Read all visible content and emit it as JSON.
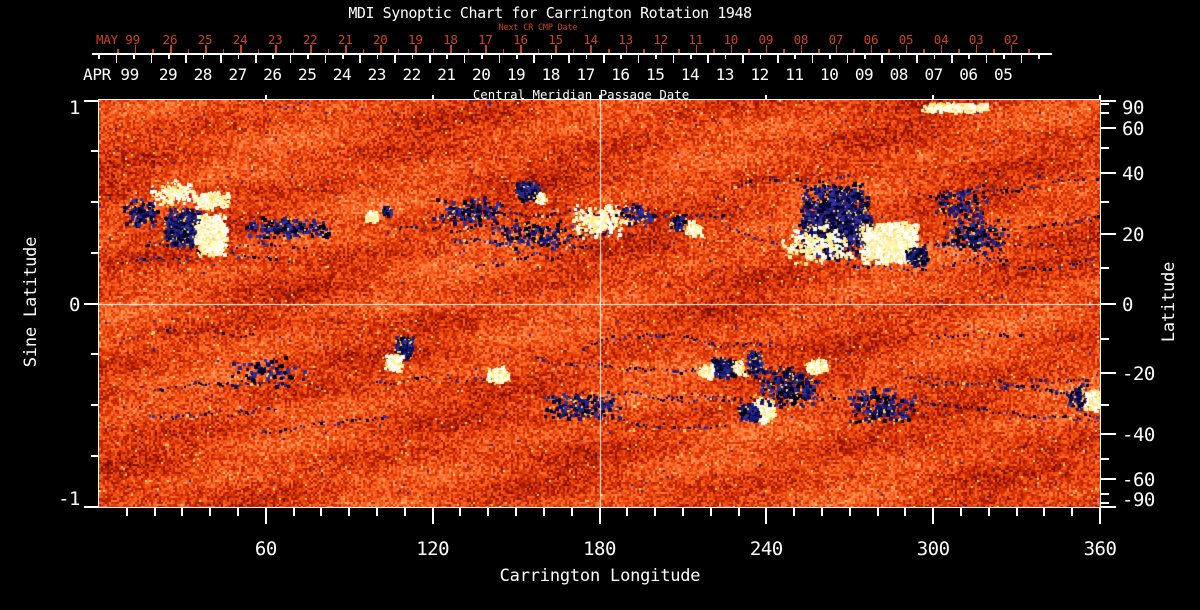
{
  "chart_data": {
    "type": "heatmap",
    "title": "MDI Synoptic Chart for Carrington Rotation 1948",
    "top_axis": {
      "name": "Next CR CMP Date",
      "month_label": "MAY 99",
      "tick_labels": [
        "26",
        "25",
        "24",
        "23",
        "22",
        "21",
        "20",
        "19",
        "18",
        "17",
        "16",
        "15",
        "14",
        "13",
        "12",
        "11",
        "10",
        "09",
        "08",
        "07",
        "06",
        "05",
        "04",
        "03",
        "02"
      ],
      "color": "#cf4318"
    },
    "cmp_axis": {
      "name": "Central Meridian Passage Date",
      "month_label": "APR 99",
      "tick_labels": [
        "29",
        "28",
        "27",
        "26",
        "25",
        "24",
        "23",
        "22",
        "21",
        "20",
        "19",
        "18",
        "17",
        "16",
        "15",
        "14",
        "13",
        "12",
        "11",
        "10",
        "09",
        "08",
        "07",
        "06",
        "05"
      ]
    },
    "x_axis": {
      "label": "Carrington Longitude",
      "range": [
        0,
        360
      ],
      "tick_labels": [
        "60",
        "120",
        "180",
        "240",
        "300",
        "360"
      ],
      "minor_step": 10
    },
    "y_left": {
      "label": "Sine Latitude",
      "range": [
        -1,
        1
      ],
      "tick_labels": [
        "1",
        "0",
        "-1"
      ],
      "minor_step": 0.25
    },
    "y_right": {
      "label": "Latitude",
      "tick_labels": [
        "90",
        "60",
        "40",
        "20",
        "0",
        "-20",
        "-40",
        "-60",
        "-90"
      ],
      "minor_step": 10
    },
    "crosshair": {
      "longitude": 180,
      "sine_latitude": 0
    },
    "colors": {
      "background": "#000000",
      "axis": "#ffffff",
      "date_axis_red": "#cf4318",
      "quiet_palette": [
        "#7e0e00",
        "#9c1600",
        "#b82100",
        "#cf2d00",
        "#e23d04",
        "#f04e10",
        "#fb5f1f",
        "#ff7030",
        "#ff8344",
        "#ff9b5c"
      ],
      "negative_palette": [
        "#000030",
        "#0b0b52",
        "#17176e",
        "#000010",
        "#252586",
        "#31319a"
      ],
      "positive_palette": [
        "#ffffff",
        "#fffef2",
        "#ffffd0",
        "#fff3ae",
        "#ffea90"
      ],
      "fringe": "#ffd24d",
      "salt_navy": "#22229a",
      "salt_yellow": "#ffd27a"
    },
    "active_regions": [
      {
        "lon": 29.9,
        "slat": 0.374,
        "rlon": 7.2,
        "rslat": 0.099,
        "pol": "neg",
        "d": 1.6
      },
      {
        "lon": 39.9,
        "slat": 0.34,
        "rlon": 6.1,
        "rslat": 0.108,
        "pol": "pos",
        "d": 1.8
      },
      {
        "lon": 39.9,
        "slat": 0.512,
        "rlon": 6.5,
        "rslat": 0.049,
        "pol": "pos",
        "d": 1.2
      },
      {
        "lon": 26.0,
        "slat": 0.55,
        "rlon": 8.0,
        "rslat": 0.07,
        "pol": "pos",
        "d": 0.3
      },
      {
        "lon": 14.7,
        "slat": 0.453,
        "rlon": 7.2,
        "rslat": 0.074,
        "pol": "neg",
        "d": 0.35
      },
      {
        "lon": 66.9,
        "slat": 0.374,
        "rlon": 16.2,
        "rslat": 0.059,
        "pol": "neg",
        "d": 0.3
      },
      {
        "lon": 97.5,
        "slat": 0.438,
        "rlon": 2.2,
        "rslat": 0.03,
        "pol": "pos",
        "d": 1.2
      },
      {
        "lon": 103.2,
        "slat": 0.458,
        "rlon": 2.2,
        "rslat": 0.03,
        "pol": "neg",
        "d": 1.2
      },
      {
        "lon": 133.4,
        "slat": 0.463,
        "rlon": 14.4,
        "rslat": 0.074,
        "pol": "neg",
        "d": 0.22
      },
      {
        "lon": 153.9,
        "slat": 0.562,
        "rlon": 5.0,
        "rslat": 0.049,
        "pol": "neg",
        "d": 1.5
      },
      {
        "lon": 158.6,
        "slat": 0.527,
        "rlon": 2.2,
        "rslat": 0.03,
        "pol": "pos",
        "d": 1.3
      },
      {
        "lon": 155.0,
        "slat": 0.35,
        "rlon": 18.0,
        "rslat": 0.08,
        "pol": "neg",
        "d": 0.15
      },
      {
        "lon": 180.2,
        "slat": 0.414,
        "rlon": 10.8,
        "rslat": 0.089,
        "pol": "pos",
        "d": 0.35
      },
      {
        "lon": 193.0,
        "slat": 0.44,
        "rlon": 8.0,
        "rslat": 0.06,
        "pol": "neg",
        "d": 0.25
      },
      {
        "lon": 207.9,
        "slat": 0.404,
        "rlon": 2.9,
        "rslat": 0.039,
        "pol": "neg",
        "d": 1.5
      },
      {
        "lon": 213.3,
        "slat": 0.374,
        "rlon": 2.9,
        "rslat": 0.039,
        "pol": "pos",
        "d": 1.5
      },
      {
        "lon": 264.7,
        "slat": 0.414,
        "rlon": 13.7,
        "rslat": 0.197,
        "pol": "neg",
        "d": 1.0
      },
      {
        "lon": 258.0,
        "slat": 0.3,
        "rlon": 14.0,
        "rslat": 0.1,
        "pol": "pos",
        "d": 0.25
      },
      {
        "lon": 283.8,
        "slat": 0.305,
        "rlon": 10.8,
        "rslat": 0.108,
        "pol": "pos",
        "d": 1.8
      },
      {
        "lon": 293.5,
        "slat": 0.241,
        "rlon": 4.3,
        "rslat": 0.049,
        "pol": "neg",
        "d": 1.5
      },
      {
        "lon": 307.9,
        "slat": 0.97,
        "rlon": 12.6,
        "rslat": 0.025,
        "pol": "pos",
        "d": 1.2
      },
      {
        "lon": 315.1,
        "slat": 0.34,
        "rlon": 12.6,
        "rslat": 0.089,
        "pol": "neg",
        "d": 0.28
      },
      {
        "lon": 310.0,
        "slat": 0.48,
        "rlon": 10.0,
        "rslat": 0.1,
        "pol": "neg",
        "d": 0.18
      },
      {
        "lon": 109.3,
        "slat": -0.212,
        "rlon": 3.6,
        "rslat": 0.059,
        "pol": "neg",
        "d": 1.5
      },
      {
        "lon": 105.7,
        "slat": -0.286,
        "rlon": 3.2,
        "rslat": 0.044,
        "pol": "pos",
        "d": 1.4
      },
      {
        "lon": 143.1,
        "slat": -0.345,
        "rlon": 4.3,
        "rslat": 0.039,
        "pol": "pos",
        "d": 1.5
      },
      {
        "lon": 173.0,
        "slat": -0.498,
        "rlon": 14.4,
        "rslat": 0.074,
        "pol": "neg",
        "d": 0.25
      },
      {
        "lon": 60.0,
        "slat": -0.33,
        "rlon": 15.0,
        "rslat": 0.08,
        "pol": "neg",
        "d": 0.12
      },
      {
        "lon": 224.1,
        "slat": -0.31,
        "rlon": 4.7,
        "rslat": 0.054,
        "pol": "neg",
        "d": 1.6
      },
      {
        "lon": 218.0,
        "slat": -0.335,
        "rlon": 2.9,
        "rslat": 0.039,
        "pol": "pos",
        "d": 1.4
      },
      {
        "lon": 229.5,
        "slat": -0.31,
        "rlon": 2.5,
        "rslat": 0.034,
        "pol": "pos",
        "d": 1.4
      },
      {
        "lon": 235.2,
        "slat": -0.286,
        "rlon": 2.9,
        "rslat": 0.059,
        "pol": "neg",
        "d": 1.4
      },
      {
        "lon": 238.4,
        "slat": -0.522,
        "rlon": 4.3,
        "rslat": 0.064,
        "pol": "pos",
        "d": 1.7
      },
      {
        "lon": 233.4,
        "slat": -0.532,
        "rlon": 4.0,
        "rslat": 0.044,
        "pol": "neg",
        "d": 1.6
      },
      {
        "lon": 247.0,
        "slat": -0.4,
        "rlon": 12.0,
        "rslat": 0.12,
        "pol": "neg",
        "d": 0.3
      },
      {
        "lon": 257.5,
        "slat": -0.305,
        "rlon": 4.3,
        "rslat": 0.039,
        "pol": "pos",
        "d": 1.3
      },
      {
        "lon": 280.9,
        "slat": -0.498,
        "rlon": 12.6,
        "rslat": 0.099,
        "pol": "neg",
        "d": 0.25
      },
      {
        "lon": 352.0,
        "slat": -0.45,
        "rlon": 5.0,
        "rslat": 0.07,
        "pol": "neg",
        "d": 0.4
      },
      {
        "lon": 357.5,
        "slat": -0.473,
        "rlon": 3.6,
        "rslat": 0.059,
        "pol": "pos",
        "d": 1.6
      }
    ]
  }
}
